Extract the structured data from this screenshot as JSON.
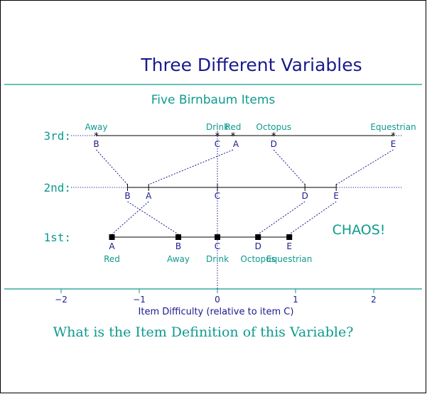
{
  "title": "Three Different Variables",
  "subtitle": "Five Birnbaum Items",
  "question": "What is the Item Definition of this Variable?",
  "annotation": "CHAOS!",
  "colors": {
    "title": "#1a1a8c",
    "teal": "#0e9a8e",
    "navy": "#1a1a8c",
    "frame": "#000000"
  },
  "chart_data": {
    "type": "dot-plot",
    "xlabel": "Item Difficulty (relative to item C)",
    "xlim": [
      -2.5,
      2.4
    ],
    "ticks": [
      -2,
      -1,
      0,
      1,
      2
    ],
    "tick_labels": [
      "−2",
      "−1",
      "0",
      "1",
      "2"
    ],
    "rows": [
      {
        "label": "3rd:",
        "items": [
          {
            "letter": "B",
            "name": "Away",
            "x": -1.55
          },
          {
            "letter": "C",
            "name": "Drink",
            "x": 0.0
          },
          {
            "letter": "A",
            "name": "Red",
            "x": 0.2
          },
          {
            "letter": "D",
            "name": "Octopus",
            "x": 0.72
          },
          {
            "letter": "E",
            "name": "Equestrian",
            "x": 2.25
          }
        ]
      },
      {
        "label": "2nd:",
        "items": [
          {
            "letter": "B",
            "name": "",
            "x": -1.15
          },
          {
            "letter": "A",
            "name": "",
            "x": -0.88
          },
          {
            "letter": "C",
            "name": "",
            "x": 0.0
          },
          {
            "letter": "D",
            "name": "",
            "x": 1.12
          },
          {
            "letter": "E",
            "name": "",
            "x": 1.52
          }
        ]
      },
      {
        "label": "1st:",
        "items": [
          {
            "letter": "A",
            "name": "Red",
            "x": -1.35
          },
          {
            "letter": "B",
            "name": "Away",
            "x": -0.5
          },
          {
            "letter": "C",
            "name": "Drink",
            "x": 0.0
          },
          {
            "letter": "D",
            "name": "Octopus",
            "x": 0.52
          },
          {
            "letter": "E",
            "name": "Equestrian",
            "x": 0.92
          }
        ]
      }
    ]
  }
}
